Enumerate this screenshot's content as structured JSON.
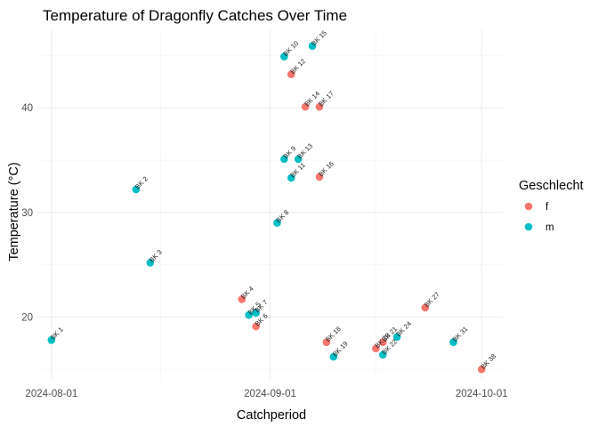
{
  "chart_data": {
    "type": "scatter",
    "title": "Temperature of Dragonfly Catches Over Time",
    "xlabel": "Catchperiod",
    "ylabel": "Temperature (°C)",
    "x_axis_type": "date",
    "xlim": [
      "2024-07-30",
      "2024-10-04"
    ],
    "ylim": [
      14.0,
      47.5
    ],
    "x_ticks": [
      "2024-08-01",
      "2024-09-01",
      "2024-10-01"
    ],
    "x_tick_labels": [
      "2024-08-01",
      "2024-09-01",
      "2024-10-01"
    ],
    "y_ticks": [
      20,
      30,
      40
    ],
    "y_tick_labels": [
      "20",
      "30",
      "40"
    ],
    "grid": true,
    "legend": {
      "title": "Geschlecht",
      "position": "right",
      "entries": [
        {
          "key": "f",
          "label": "f",
          "color": "#F8766D"
        },
        {
          "key": "m",
          "label": "m",
          "color": "#00BFC4"
        }
      ]
    },
    "points": [
      {
        "label": "BK 1",
        "date": "2024-08-01",
        "temp": 17.8,
        "sex": "m"
      },
      {
        "label": "BK 2",
        "date": "2024-08-13",
        "temp": 32.2,
        "sex": "m"
      },
      {
        "label": "BK 3",
        "date": "2024-08-15",
        "temp": 25.2,
        "sex": "m"
      },
      {
        "label": "BK 4",
        "date": "2024-08-28",
        "temp": 21.7,
        "sex": "f"
      },
      {
        "label": "BK 5",
        "date": "2024-08-29",
        "temp": 20.2,
        "sex": "m"
      },
      {
        "label": "BK 6",
        "date": "2024-08-30",
        "temp": 19.1,
        "sex": "f"
      },
      {
        "label": "BK 7",
        "date": "2024-08-30",
        "temp": 20.4,
        "sex": "m"
      },
      {
        "label": "BK 8",
        "date": "2024-09-02",
        "temp": 29.0,
        "sex": "m"
      },
      {
        "label": "BK 9",
        "date": "2024-09-03",
        "temp": 35.1,
        "sex": "m"
      },
      {
        "label": "BK 10",
        "date": "2024-09-03",
        "temp": 44.9,
        "sex": "m"
      },
      {
        "label": "BK 11",
        "date": "2024-09-04",
        "temp": 33.3,
        "sex": "m"
      },
      {
        "label": "BK 12",
        "date": "2024-09-04",
        "temp": 43.2,
        "sex": "f"
      },
      {
        "label": "BK 13",
        "date": "2024-09-05",
        "temp": 35.1,
        "sex": "m"
      },
      {
        "label": "BK 14",
        "date": "2024-09-06",
        "temp": 40.1,
        "sex": "f"
      },
      {
        "label": "BK 15",
        "date": "2024-09-07",
        "temp": 45.9,
        "sex": "m"
      },
      {
        "label": "BK 16",
        "date": "2024-09-08",
        "temp": 33.4,
        "sex": "f"
      },
      {
        "label": "BK 17",
        "date": "2024-09-08",
        "temp": 40.1,
        "sex": "f"
      },
      {
        "label": "BK 18",
        "date": "2024-09-09",
        "temp": 17.6,
        "sex": "f"
      },
      {
        "label": "BK 19",
        "date": "2024-09-10",
        "temp": 16.2,
        "sex": "m"
      },
      {
        "label": "BK 20",
        "date": "2024-09-16",
        "temp": 17.0,
        "sex": "f"
      },
      {
        "label": "BK 21",
        "date": "2024-09-17",
        "temp": 17.6,
        "sex": "f"
      },
      {
        "label": "BK 22",
        "date": "2024-09-17",
        "temp": 16.4,
        "sex": "m"
      },
      {
        "label": "BK 24",
        "date": "2024-09-19",
        "temp": 18.1,
        "sex": "m"
      },
      {
        "label": "BK 27",
        "date": "2024-09-23",
        "temp": 20.9,
        "sex": "f"
      },
      {
        "label": "BK 31",
        "date": "2024-09-27",
        "temp": 17.6,
        "sex": "m"
      },
      {
        "label": "BK 38",
        "date": "2024-10-01",
        "temp": 15.0,
        "sex": "f"
      }
    ]
  }
}
